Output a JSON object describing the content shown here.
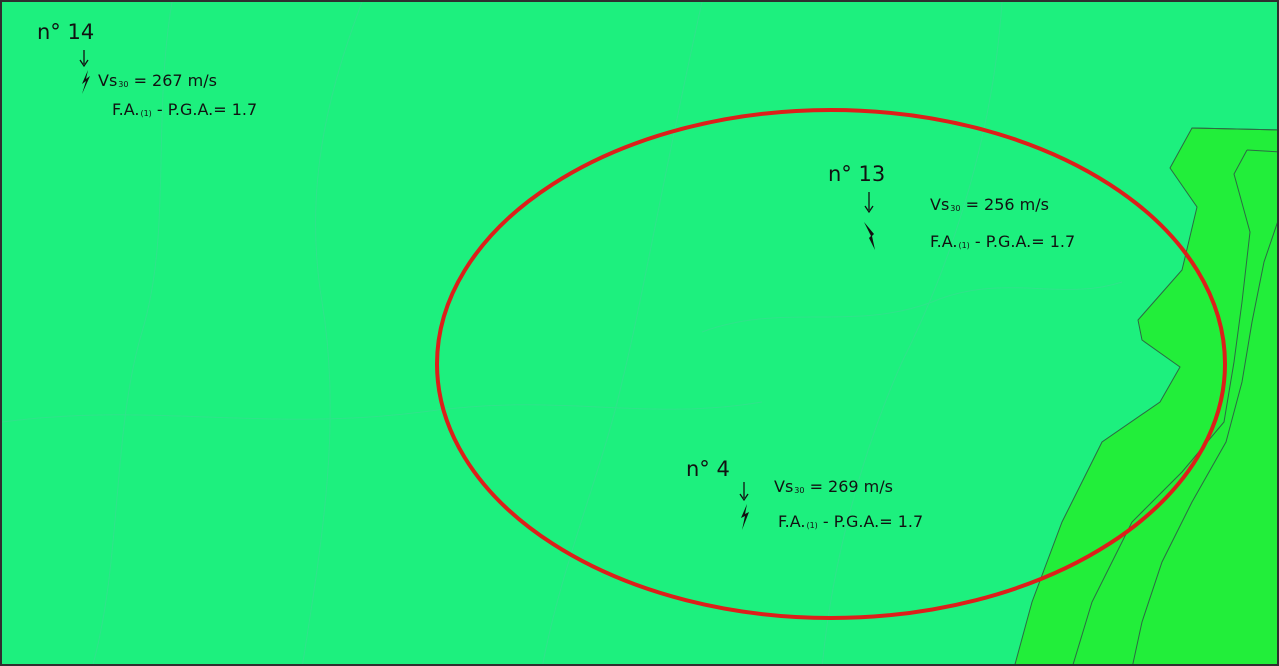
{
  "colors": {
    "zone_main": "#1df07e",
    "zone_secondary": "#22ee3a",
    "highlight_ellipse": "#dd1f1a",
    "contour": "#2c6a44",
    "text": "#111111"
  },
  "stations": [
    {
      "number": "n° 14",
      "vs_prefix": "Vs",
      "vs_sub": "30",
      "vs_value": "= 267 m/s",
      "fa_prefix": "F.A.",
      "fa_sub": "(1)",
      "fa_value": "- P.G.A.= 1.7"
    },
    {
      "number": "n° 13",
      "vs_prefix": "Vs",
      "vs_sub": "30",
      "vs_value": "= 256 m/s",
      "fa_prefix": "F.A.",
      "fa_sub": "(1)",
      "fa_value": "- P.G.A.= 1.7"
    },
    {
      "number": "n° 4",
      "vs_prefix": "Vs",
      "vs_sub": "30",
      "vs_value": "= 269 m/s",
      "fa_prefix": "F.A.",
      "fa_sub": "(1)",
      "fa_value": "- P.G.A.= 1.7"
    }
  ]
}
